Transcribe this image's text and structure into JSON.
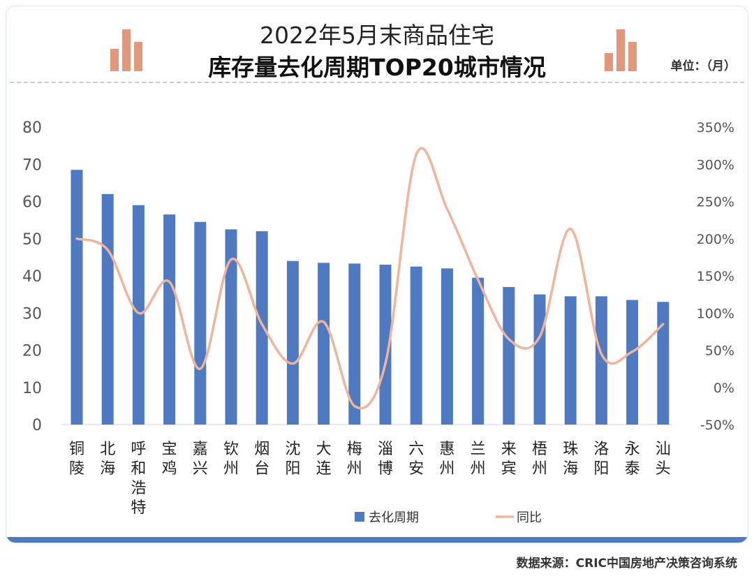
{
  "header": {
    "title_line1": "2022年5月末商品住宅",
    "title_line2": "库存量去化周期TOP20城市情况",
    "unit_label": "单位：（月）"
  },
  "source": "数据来源：CRIC中国房地产决策咨询系统",
  "chart_data": {
    "type": "bar",
    "categories": [
      "铜陵",
      "北海",
      "呼和浩特",
      "宝鸡",
      "嘉兴",
      "钦州",
      "烟台",
      "沈阳",
      "大连",
      "梅州",
      "淄博",
      "六安",
      "惠州",
      "兰州",
      "来宾",
      "梧州",
      "珠海",
      "洛阳",
      "永泰",
      "汕头"
    ],
    "series": [
      {
        "name": "去化周期",
        "type": "bar",
        "axis": "left",
        "color": "#4f79c0",
        "values": [
          68.5,
          62,
          59,
          56.5,
          54.5,
          52.5,
          52,
          44,
          43.5,
          43.3,
          43,
          42.5,
          42,
          39.5,
          37,
          35,
          34.5,
          34.5,
          33.5,
          33
        ]
      },
      {
        "name": "同比",
        "type": "line",
        "axis": "right",
        "color": "#efb49b",
        "values": [
          200,
          185,
          100,
          142,
          25,
          172,
          85,
          32,
          88,
          -25,
          32,
          313,
          240,
          145,
          65,
          68,
          213,
          45,
          48,
          85
        ]
      }
    ],
    "y_left": {
      "min": 0,
      "max": 80,
      "step": 10,
      "ticks": [
        "0",
        "10",
        "20",
        "30",
        "40",
        "50",
        "60",
        "70",
        "80"
      ]
    },
    "y_right": {
      "min": -50,
      "max": 350,
      "step": 50,
      "ticks": [
        "-50%",
        "0%",
        "50%",
        "100%",
        "150%",
        "200%",
        "250%",
        "300%",
        "350%"
      ]
    },
    "legend": {
      "position": "bottom",
      "items": [
        "去化周期",
        "同比"
      ]
    },
    "grid": false
  }
}
